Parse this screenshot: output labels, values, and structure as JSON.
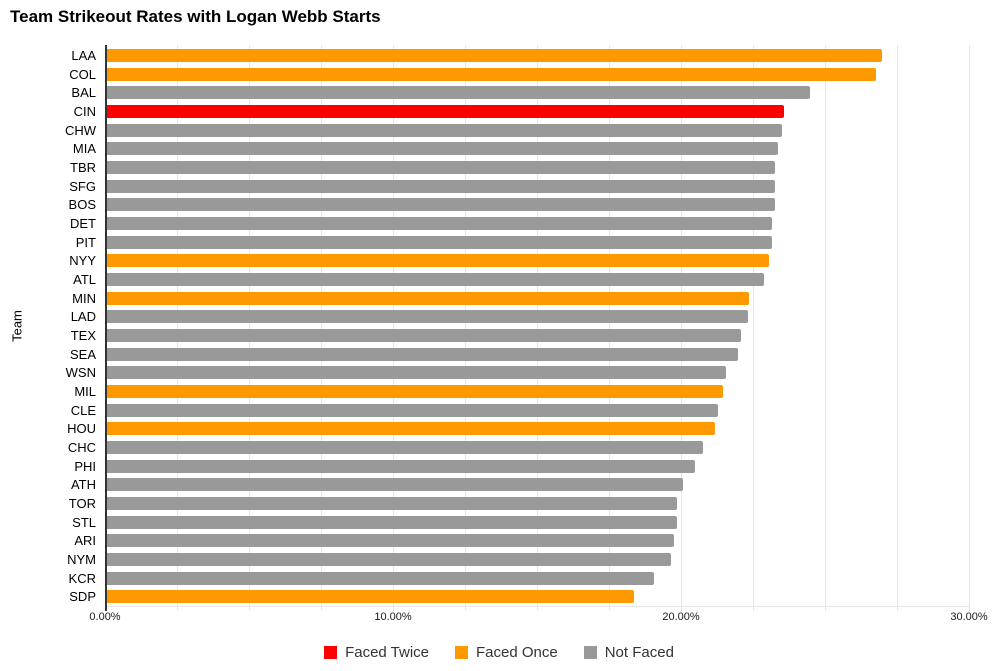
{
  "title": "Team Strikeout Rates with Logan Webb Starts",
  "y_axis_label": "Team",
  "colors": {
    "faced_twice": "#FF0000",
    "faced_once": "#FF9900",
    "not_faced": "#999999",
    "gridline": "#e6e6e6",
    "axis_line": "#333333",
    "background": "#ffffff"
  },
  "x_axis": {
    "max": 30,
    "minor_step": 2.5,
    "ticks": [
      {
        "label": "0.00%",
        "value": 0
      },
      {
        "label": "10.00%",
        "value": 10
      },
      {
        "label": "20.00%",
        "value": 20
      },
      {
        "label": "30.00%",
        "value": 30
      }
    ]
  },
  "legend": {
    "position": "bottom",
    "items": [
      {
        "label": "Faced Twice",
        "color_key": "faced_twice"
      },
      {
        "label": "Faced Once",
        "color_key": "faced_once"
      },
      {
        "label": "Not Faced",
        "color_key": "not_faced"
      }
    ]
  },
  "chart_data": {
    "type": "bar",
    "orientation": "horizontal",
    "title": "Team Strikeout Rates with Logan Webb Starts",
    "ylabel": "Team",
    "xlabel": "",
    "xlim": [
      0,
      30
    ],
    "x_tick_labels": [
      "0.00%",
      "10.00%",
      "20.00%",
      "30.00%"
    ],
    "grid": true,
    "legend_position": "bottom",
    "unit": "percent",
    "bars": [
      {
        "team": "LAA",
        "value": 26.9,
        "group": "faced_once"
      },
      {
        "team": "COL",
        "value": 26.7,
        "group": "faced_once"
      },
      {
        "team": "BAL",
        "value": 24.4,
        "group": "not_faced"
      },
      {
        "team": "CIN",
        "value": 23.5,
        "group": "faced_twice"
      },
      {
        "team": "CHW",
        "value": 23.45,
        "group": "not_faced"
      },
      {
        "team": "MIA",
        "value": 23.3,
        "group": "not_faced"
      },
      {
        "team": "TBR",
        "value": 23.2,
        "group": "not_faced"
      },
      {
        "team": "SFG",
        "value": 23.2,
        "group": "not_faced"
      },
      {
        "team": "BOS",
        "value": 23.2,
        "group": "not_faced"
      },
      {
        "team": "DET",
        "value": 23.1,
        "group": "not_faced"
      },
      {
        "team": "PIT",
        "value": 23.1,
        "group": "not_faced"
      },
      {
        "team": "NYY",
        "value": 23.0,
        "group": "faced_once"
      },
      {
        "team": "ATL",
        "value": 22.8,
        "group": "not_faced"
      },
      {
        "team": "MIN",
        "value": 22.3,
        "group": "faced_once"
      },
      {
        "team": "LAD",
        "value": 22.25,
        "group": "not_faced"
      },
      {
        "team": "TEX",
        "value": 22.0,
        "group": "not_faced"
      },
      {
        "team": "SEA",
        "value": 21.9,
        "group": "not_faced"
      },
      {
        "team": "WSN",
        "value": 21.5,
        "group": "not_faced"
      },
      {
        "team": "MIL",
        "value": 21.4,
        "group": "faced_once"
      },
      {
        "team": "CLE",
        "value": 21.2,
        "group": "not_faced"
      },
      {
        "team": "HOU",
        "value": 21.1,
        "group": "faced_once"
      },
      {
        "team": "CHC",
        "value": 20.7,
        "group": "not_faced"
      },
      {
        "team": "PHI",
        "value": 20.4,
        "group": "not_faced"
      },
      {
        "team": "ATH",
        "value": 20.0,
        "group": "not_faced"
      },
      {
        "team": "TOR",
        "value": 19.8,
        "group": "not_faced"
      },
      {
        "team": "STL",
        "value": 19.8,
        "group": "not_faced"
      },
      {
        "team": "ARI",
        "value": 19.7,
        "group": "not_faced"
      },
      {
        "team": "NYM",
        "value": 19.6,
        "group": "not_faced"
      },
      {
        "team": "KCR",
        "value": 19.0,
        "group": "not_faced"
      },
      {
        "team": "SDP",
        "value": 18.3,
        "group": "faced_once"
      }
    ]
  }
}
